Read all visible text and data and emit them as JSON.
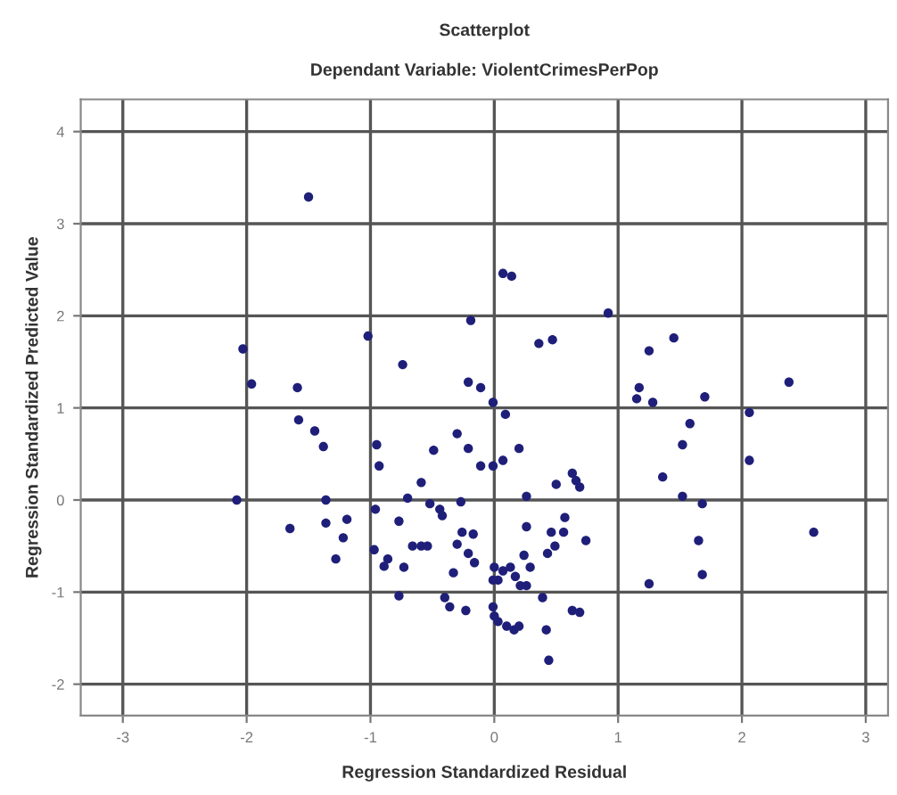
{
  "chart_data": {
    "type": "scatter",
    "title": "Scatterplot",
    "subtitle": "Dependant Variable: ViolentCrimesPerPop",
    "xlabel": "Regression Standardized Residual",
    "ylabel": "Regression Standardized Predicted Value",
    "xlim": [
      -3.34,
      3.18
    ],
    "ylim": [
      -2.34,
      4.35
    ],
    "xticks": [
      -3,
      -2,
      -1,
      0,
      1,
      2,
      3
    ],
    "yticks": [
      -2,
      -1,
      0,
      1,
      2,
      3,
      4
    ],
    "grid": true,
    "marker": "circle",
    "series": [
      {
        "color": "#1f1f7a",
        "x": [
          -1.5,
          0.07,
          0.14,
          -0.19,
          -2.03,
          -1.02,
          -0.74,
          -1.96,
          -1.59,
          -0.21,
          -0.11,
          -0.01,
          0.09,
          -1.58,
          -1.45,
          -1.38,
          -0.95,
          -0.49,
          -0.3,
          -0.21,
          0.2,
          0.36,
          0.47,
          0.92,
          1.25,
          1.45,
          2.38,
          1.7,
          1.17,
          1.15,
          1.28,
          2.06,
          1.58,
          1.52,
          -0.11,
          -0.01,
          0.07,
          0.5,
          0.63,
          0.66,
          0.69,
          0.26,
          1.36,
          1.52,
          1.68,
          2.06,
          0.26,
          0.46,
          0.56,
          0.57,
          0.74,
          0.49,
          0.43,
          0.24,
          0.29,
          1.65,
          2.58,
          1.68,
          1.25,
          0.0,
          0.07,
          0.13,
          -0.01,
          0.03,
          0.17,
          0.21,
          -0.33,
          -0.36,
          -0.23,
          0.39,
          -0.01,
          0.0,
          0.03,
          0.1,
          0.16,
          0.2,
          0.63,
          0.69,
          0.42,
          0.44,
          -0.93,
          -0.59,
          -0.7,
          -0.52,
          -0.44,
          -0.42,
          -0.27,
          -2.08,
          -1.36,
          -1.36,
          -1.19,
          -1.22,
          -1.65,
          -1.28,
          -0.96,
          -0.77,
          -0.97,
          -0.89,
          -0.86,
          -0.73,
          -0.66,
          -0.59,
          -0.54,
          -0.26,
          -0.17,
          -0.3,
          -0.21,
          -0.16,
          -0.77,
          -0.4,
          0.26
        ],
        "values": [
          3.29,
          2.46,
          2.43,
          1.95,
          1.64,
          1.78,
          1.47,
          1.26,
          1.22,
          1.28,
          1.22,
          1.06,
          0.93,
          0.87,
          0.75,
          0.58,
          0.6,
          0.54,
          0.72,
          0.56,
          0.56,
          1.7,
          1.74,
          2.03,
          1.62,
          1.76,
          1.28,
          1.12,
          1.22,
          1.1,
          1.06,
          0.95,
          0.83,
          0.6,
          0.37,
          0.37,
          0.43,
          0.17,
          0.29,
          0.21,
          0.14,
          0.04,
          0.25,
          0.04,
          -0.04,
          0.43,
          -0.29,
          -0.35,
          -0.35,
          -0.19,
          -0.44,
          -0.5,
          -0.58,
          -0.6,
          -0.73,
          -0.44,
          -0.35,
          -0.81,
          -0.91,
          -0.73,
          -0.77,
          -0.73,
          -0.87,
          -0.87,
          -0.83,
          -0.93,
          -0.79,
          -1.16,
          -1.2,
          -1.06,
          -1.16,
          -1.26,
          -1.32,
          -1.37,
          -1.41,
          -1.37,
          -1.2,
          -1.22,
          -1.41,
          -1.74,
          0.37,
          0.19,
          0.02,
          -0.04,
          -0.1,
          -0.17,
          -0.02,
          0.0,
          0.0,
          -0.25,
          -0.21,
          -0.41,
          -0.31,
          -0.64,
          -0.1,
          -0.23,
          -0.54,
          -0.72,
          -0.64,
          -0.73,
          -0.5,
          -0.5,
          -0.5,
          -0.35,
          -0.37,
          -0.48,
          -0.58,
          -0.68,
          -1.04,
          -1.06,
          -0.93
        ]
      }
    ]
  }
}
